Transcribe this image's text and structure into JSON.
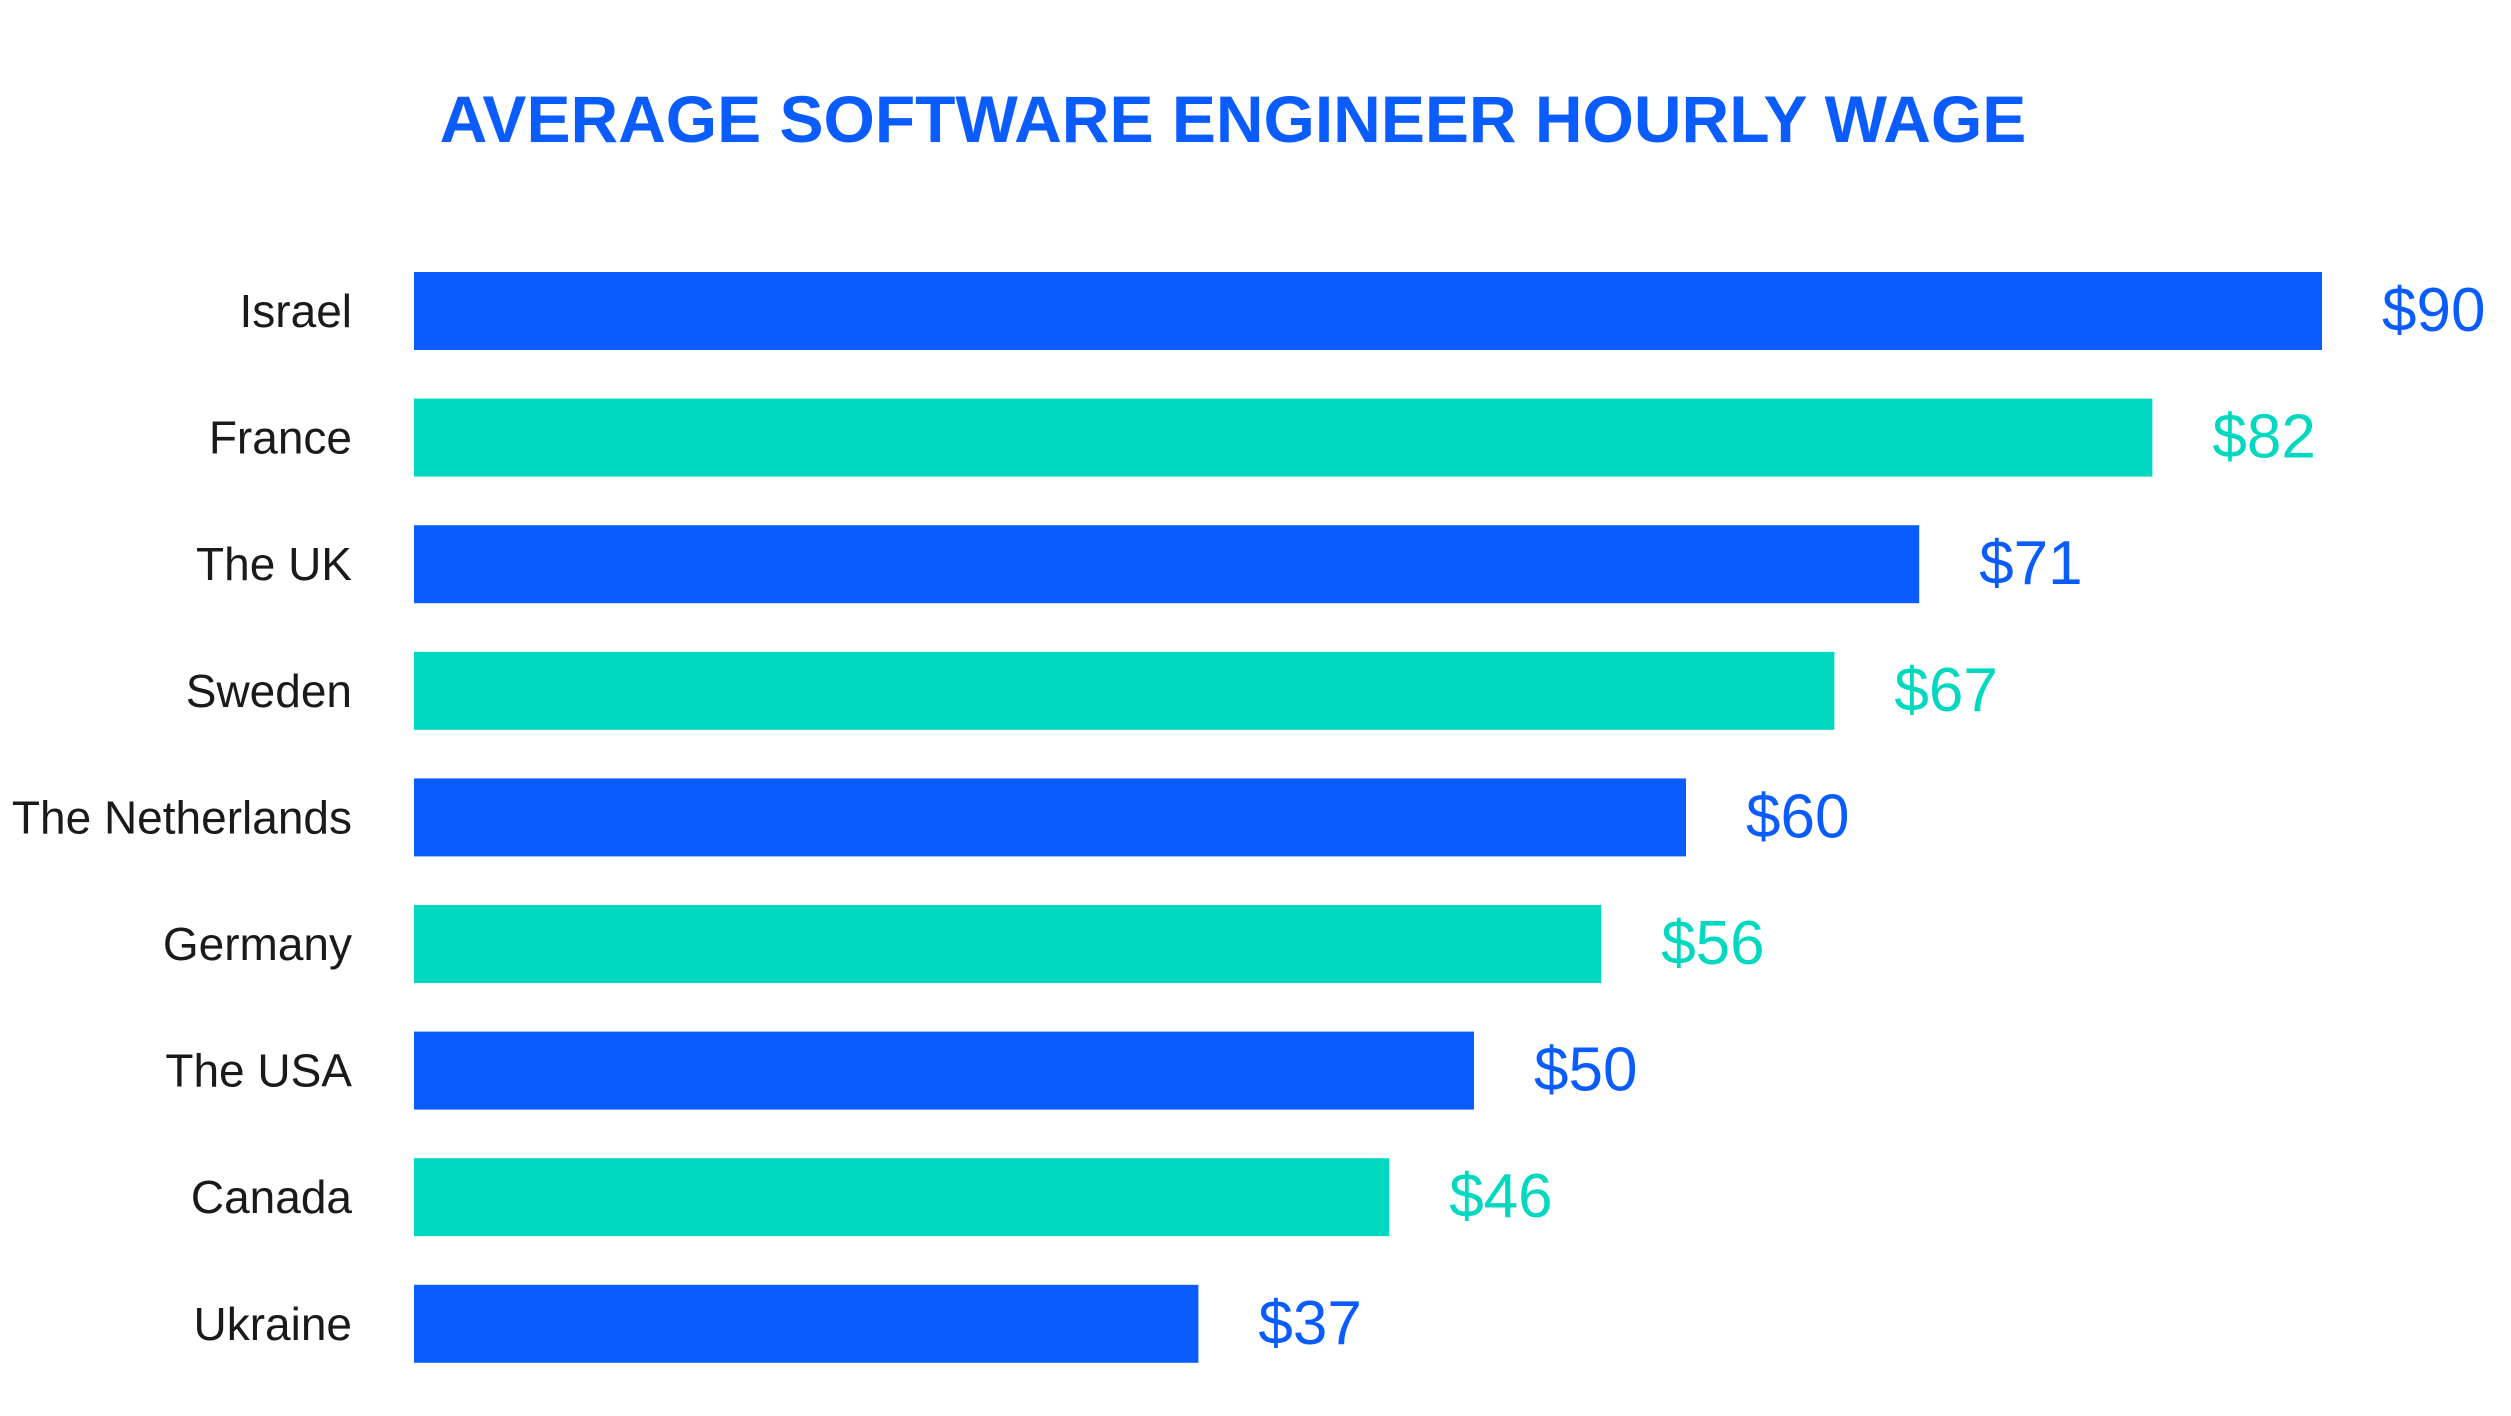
{
  "chart_data": {
    "type": "bar",
    "orientation": "horizontal",
    "title": "AVERAGE SOFTWARE ENGINEER HOURLY WAGE",
    "xlabel": "",
    "ylabel": "",
    "xlim": [
      0,
      90
    ],
    "grid": false,
    "legend": "none",
    "value_prefix": "$",
    "categories": [
      "Israel",
      "France",
      "The UK",
      "Sweden",
      "The Netherlands",
      "Germany",
      "The USA",
      "Canada",
      "Ukraine"
    ],
    "values": [
      90,
      82,
      71,
      67,
      60,
      56,
      50,
      46,
      37
    ],
    "value_labels": [
      "$90",
      "$82",
      "$71",
      "$67",
      "$60",
      "$56",
      "$50",
      "$46",
      "$37"
    ],
    "bar_colors": [
      "#0a5cff",
      "#00d9c0",
      "#0a5cff",
      "#00d9c0",
      "#0a5cff",
      "#00d9c0",
      "#0a5cff",
      "#00d9c0",
      "#0a5cff"
    ],
    "title_color": "#0a5cff"
  }
}
